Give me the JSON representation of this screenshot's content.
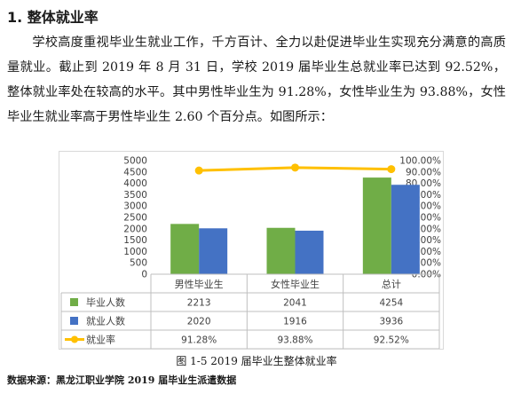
{
  "section": {
    "heading": "1. 整体就业率"
  },
  "paragraph": "学校高度重视毕业生就业工作，千方百计、全力以赴促进毕业生实现充分满意的高质量就业。截止到 2019 年 8 月 31 日，学校 2019 届毕业生总就业率已达到 92.52%，整体就业率处在较高的水平。其中男性毕业生为 91.28%，女性毕业生为 93.88%，女性毕业生就业率高于男性毕业生 2.60 个百分点。如图所示：",
  "chart_data": {
    "type": "bar",
    "categories": [
      "男性毕业生",
      "女性毕业生",
      "总计"
    ],
    "series": [
      {
        "name": "毕业人数",
        "values": [
          2213,
          2041,
          4254
        ],
        "color": "#70ad47",
        "labels": [
          "2213",
          "2041",
          "4254"
        ]
      },
      {
        "name": "就业人数",
        "values": [
          2020,
          1916,
          3936
        ],
        "color": "#4472c4",
        "labels": [
          "2020",
          "1916",
          "3936"
        ]
      },
      {
        "name": "就业率",
        "type": "line",
        "axis": "right",
        "values": [
          91.28,
          93.88,
          92.52
        ],
        "color": "#ffc000",
        "labels": [
          "91.28%",
          "93.88%",
          "92.52%"
        ]
      }
    ],
    "ylim": [
      0,
      5000
    ],
    "y_ticks": [
      "0",
      "500",
      "1000",
      "1500",
      "2000",
      "2500",
      "3000",
      "3500",
      "4000",
      "4500",
      "5000"
    ],
    "y2lim": [
      0,
      100
    ],
    "y2_ticks": [
      "0.00%",
      "10.00%",
      "20.00%",
      "30.00%",
      "40.00%",
      "50.00%",
      "60.00%",
      "70.00%",
      "80.00%",
      "90.00%",
      "100.00%"
    ],
    "legend": "data-table",
    "grid": false
  },
  "caption": "图 1-5 2019 届毕业生整体就业率",
  "source": "数据来源：黑龙江职业学院 2019 届毕业生派遣数据"
}
